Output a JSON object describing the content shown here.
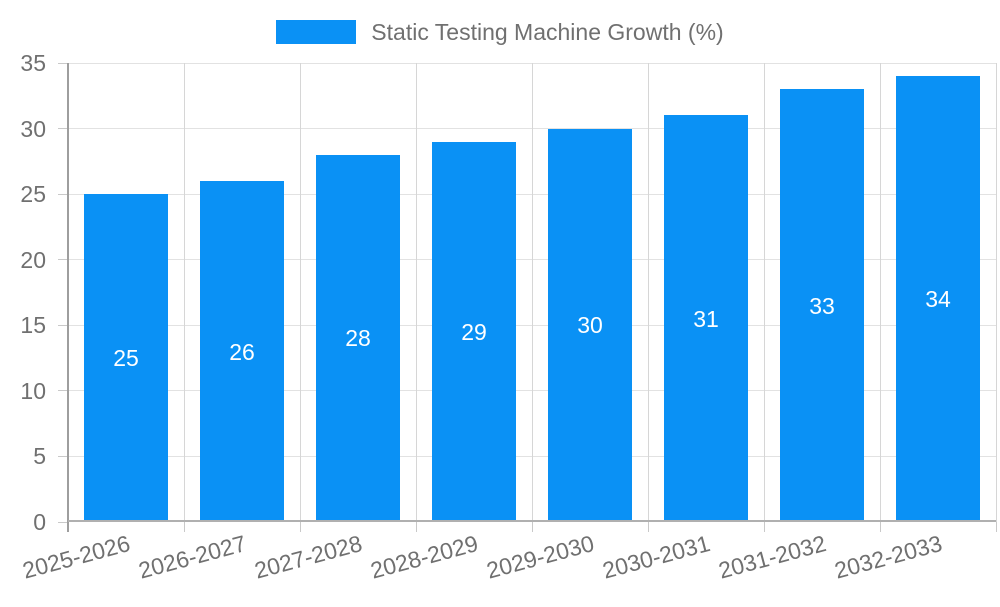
{
  "legend": {
    "label": "Static Testing Machine Growth (%)"
  },
  "colors": {
    "bar": "#0a91f5",
    "value_label": "#ffffff",
    "axis_text": "#707070",
    "hgrid": "#e2e2e2",
    "vgrid": "#d6d6d6",
    "yaxis_line": "#9e9e9e",
    "baseline": "#b0b0b0",
    "tick": "#c9c9c9"
  },
  "chart_data": {
    "type": "bar",
    "title": "Static Testing Machine Growth (%)",
    "categories": [
      "2025-2026",
      "2026-2027",
      "2027-2028",
      "2028-2029",
      "2029-2030",
      "2030-2031",
      "2031-2032",
      "2032-2033"
    ],
    "values": [
      25,
      26,
      28,
      29,
      30,
      31,
      33,
      34
    ],
    "bar_value_labels": [
      25,
      26,
      28,
      29,
      30,
      31,
      33,
      34
    ],
    "xlabel": "",
    "ylabel": "",
    "ylim": [
      0,
      35
    ],
    "yticks": [
      0,
      5,
      10,
      15,
      20,
      25,
      30,
      35
    ],
    "grid": "horizontal and vertical category boundaries",
    "legend_position": "top-center",
    "xtick_label_rotation_deg": -15,
    "value_label_position": "centered inside bar"
  }
}
